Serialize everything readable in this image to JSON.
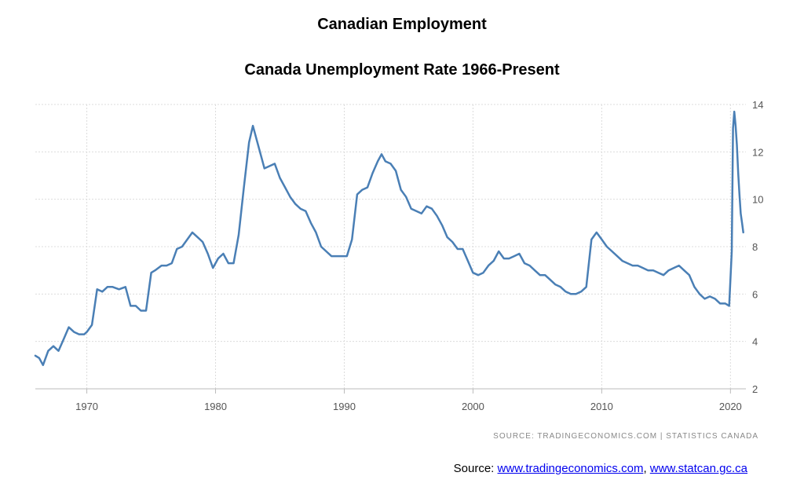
{
  "header": {
    "title": "Canadian Employment",
    "subtitle": "Canada Unemployment Rate 1966-Present"
  },
  "source_note": "SOURCE:  TRADINGECONOMICS.COM  |  STATISTICS CANADA",
  "footer": {
    "prefix": "Source: ",
    "link1": "www.tradingeconomics.com",
    "separator": ", ",
    "link2": "www.statcan.gc.ca"
  },
  "chart_data": {
    "type": "line",
    "title": "Canada Unemployment Rate 1966-Present",
    "xlabel": "",
    "ylabel": "",
    "xlim": [
      1966,
      2021.2
    ],
    "ylim": [
      2,
      14
    ],
    "x_ticks": [
      1970,
      1980,
      1990,
      2000,
      2010,
      2020
    ],
    "y_ticks": [
      2,
      4,
      6,
      8,
      10,
      12,
      14
    ],
    "y_axis_position": "right",
    "grid": true,
    "line_color": "#4a7fb5",
    "series": [
      {
        "x": [
          1966.0,
          1966.3,
          1966.6,
          1967.0,
          1967.4,
          1967.8,
          1968.2,
          1968.6,
          1969.0,
          1969.4,
          1969.8,
          1970.0,
          1970.4,
          1970.8,
          1971.2,
          1971.6,
          1972.0,
          1972.5,
          1973.0,
          1973.4,
          1973.8,
          1974.2,
          1974.6,
          1975.0,
          1975.3,
          1975.8,
          1976.2,
          1976.6,
          1977.0,
          1977.4,
          1977.8,
          1978.2,
          1978.6,
          1979.0,
          1979.4,
          1979.8,
          1980.2,
          1980.6,
          1981.0,
          1981.4,
          1981.8,
          1982.2,
          1982.6,
          1982.9,
          1983.2,
          1983.5,
          1983.8,
          1984.2,
          1984.6,
          1985.0,
          1985.4,
          1985.8,
          1986.2,
          1986.6,
          1987.0,
          1987.4,
          1987.8,
          1988.2,
          1988.6,
          1989.0,
          1989.4,
          1989.8,
          1990.2,
          1990.6,
          1991.0,
          1991.4,
          1991.8,
          1992.2,
          1992.6,
          1992.9,
          1993.2,
          1993.6,
          1994.0,
          1994.4,
          1994.8,
          1995.2,
          1995.6,
          1996.0,
          1996.4,
          1996.8,
          1997.2,
          1997.6,
          1998.0,
          1998.4,
          1998.8,
          1999.2,
          1999.6,
          2000.0,
          2000.4,
          2000.8,
          2001.2,
          2001.6,
          2002.0,
          2002.4,
          2002.8,
          2003.2,
          2003.6,
          2004.0,
          2004.4,
          2004.8,
          2005.2,
          2005.6,
          2006.0,
          2006.4,
          2006.8,
          2007.2,
          2007.6,
          2008.0,
          2008.4,
          2008.8,
          2009.2,
          2009.6,
          2010.0,
          2010.4,
          2010.8,
          2011.2,
          2011.6,
          2012.0,
          2012.4,
          2012.8,
          2013.2,
          2013.6,
          2014.0,
          2014.4,
          2014.8,
          2015.2,
          2015.6,
          2016.0,
          2016.4,
          2016.8,
          2017.2,
          2017.6,
          2018.0,
          2018.4,
          2018.8,
          2019.2,
          2019.6,
          2019.9,
          2020.1,
          2020.2,
          2020.3,
          2020.4,
          2020.5,
          2020.6,
          2020.7,
          2020.8,
          2020.9,
          2021.0
        ],
        "values": [
          3.4,
          3.3,
          3.0,
          3.6,
          3.8,
          3.6,
          4.1,
          4.6,
          4.4,
          4.3,
          4.3,
          4.4,
          4.7,
          6.2,
          6.1,
          6.3,
          6.3,
          6.2,
          6.3,
          5.5,
          5.5,
          5.3,
          5.3,
          6.9,
          7.0,
          7.2,
          7.2,
          7.3,
          7.9,
          8.0,
          8.3,
          8.6,
          8.4,
          8.2,
          7.7,
          7.1,
          7.5,
          7.7,
          7.3,
          7.3,
          8.5,
          10.5,
          12.4,
          13.1,
          12.5,
          11.9,
          11.3,
          11.4,
          11.5,
          10.9,
          10.5,
          10.1,
          9.8,
          9.6,
          9.5,
          9.0,
          8.6,
          8.0,
          7.8,
          7.6,
          7.6,
          7.6,
          7.6,
          8.3,
          10.2,
          10.4,
          10.5,
          11.1,
          11.6,
          11.9,
          11.6,
          11.5,
          11.2,
          10.4,
          10.1,
          9.6,
          9.5,
          9.4,
          9.7,
          9.6,
          9.3,
          8.9,
          8.4,
          8.2,
          7.9,
          7.9,
          7.4,
          6.9,
          6.8,
          6.9,
          7.2,
          7.4,
          7.8,
          7.5,
          7.5,
          7.6,
          7.7,
          7.3,
          7.2,
          7.0,
          6.8,
          6.8,
          6.6,
          6.4,
          6.3,
          6.1,
          6.0,
          6.0,
          6.1,
          6.3,
          8.3,
          8.6,
          8.3,
          8.0,
          7.8,
          7.6,
          7.4,
          7.3,
          7.2,
          7.2,
          7.1,
          7.0,
          7.0,
          6.9,
          6.8,
          7.0,
          7.1,
          7.2,
          7.0,
          6.8,
          6.3,
          6.0,
          5.8,
          5.9,
          5.8,
          5.6,
          5.6,
          5.5,
          7.8,
          13.0,
          13.7,
          13.1,
          12.3,
          11.1,
          10.2,
          9.4,
          9.0,
          8.6
        ]
      }
    ]
  }
}
